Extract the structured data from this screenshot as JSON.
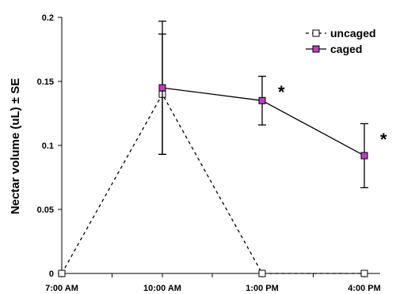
{
  "chart_data": {
    "type": "line",
    "title": "",
    "xlabel": "",
    "ylabel": "Nectar volume (uL) ± SE",
    "categories": [
      "7:00 AM",
      "10:00 AM",
      "1:00 PM",
      "4:00 PM"
    ],
    "ylim": [
      0,
      0.2
    ],
    "yticks": [
      "0",
      "0.05",
      "0.1",
      "0.15",
      "0.2"
    ],
    "grid": false,
    "legend_position": "top-right",
    "series": [
      {
        "name": "uncaged",
        "values": [
          0,
          0.14,
          0,
          0
        ],
        "errors": [
          0,
          0.047,
          0,
          0
        ],
        "line_style": "dashed",
        "marker": "open-square",
        "marker_fill": "#ffffff"
      },
      {
        "name": "caged",
        "values": [
          null,
          0.145,
          0.135,
          0.092
        ],
        "errors": [
          null,
          0.052,
          0.019,
          0.025
        ],
        "line_style": "solid",
        "marker": "filled-square",
        "marker_fill": "#c03cc0"
      }
    ],
    "annotations": [
      {
        "text": "*",
        "category": "1:00 PM",
        "y": 0.142
      },
      {
        "text": "*",
        "category": "4:00 PM",
        "y": 0.105
      }
    ]
  }
}
